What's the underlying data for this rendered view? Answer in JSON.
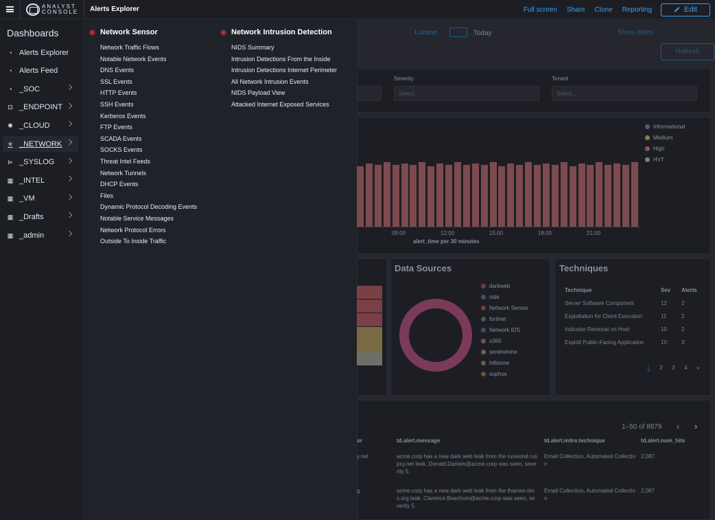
{
  "header": {
    "logo_line1": "ANALYST",
    "logo_line2": "CONSOLE",
    "title": "Alerts Explorer",
    "actions": [
      "Full screen",
      "Share",
      "Clone",
      "Reporting"
    ],
    "edit_label": "Edit"
  },
  "sidebar": {
    "title": "Dashboards",
    "items": [
      {
        "label": "Alerts Explorer",
        "icon": "gauge-icon",
        "has_children": false
      },
      {
        "label": "Alerts Feed",
        "icon": "gauge-icon",
        "has_children": false
      },
      {
        "label": "_SOC",
        "icon": "gauge-icon",
        "has_children": true
      },
      {
        "label": "_ENDPOINT",
        "icon": "chip-icon",
        "has_children": true
      },
      {
        "label": "_CLOUD",
        "icon": "sun-icon",
        "has_children": true
      },
      {
        "label": "_NETWORK",
        "icon": "network-icon",
        "has_children": true,
        "active": true
      },
      {
        "label": "_SYSLOG",
        "icon": "logs-icon",
        "has_children": true
      },
      {
        "label": "_INTEL",
        "icon": "grid-icon",
        "has_children": true
      },
      {
        "label": "_VM",
        "icon": "grid-icon",
        "has_children": true
      },
      {
        "label": "_Drafts",
        "icon": "grid-icon",
        "has_children": true
      },
      {
        "label": "_admin",
        "icon": "grid-icon",
        "has_children": true
      }
    ]
  },
  "dropdown": {
    "network_sensor": {
      "title": "Network Sensor",
      "links": [
        "Network Traffic Flows",
        "Notable Network Events",
        "DNS Events",
        "SSL Events",
        "HTTP Events",
        "SSH Events",
        "Kerberos Events",
        "FTP Events",
        "SCADA Events",
        "SOCKS Events",
        "Threat Intel Feeds",
        "Network Tunnels",
        "DHCP Events",
        "Files",
        "Dynamic Protocol Decoding Events",
        "Notable Service Messages",
        "Network Protocol Errors",
        "Outside To Inside Traffic"
      ]
    },
    "nids": {
      "title": "Network Intrusion Detection",
      "links": [
        "NIDS Summary",
        "Intrusion Detections From the Inside",
        "Intrusion Detections Internet Perimeter",
        "All Network Intrusion Events",
        "NIDS Payload View",
        "Attacked Internet Exposed Services"
      ]
    }
  },
  "background": {
    "query_language": "Lucene",
    "date_range": "Today",
    "show_dates": "Show dates",
    "refresh": "Refresh",
    "filters": [
      {
        "label": "Severity",
        "placeholder": "Select..."
      },
      {
        "label": "Tenant",
        "placeholder": "Select..."
      }
    ],
    "histogram": {
      "x_axis_title": "alert_time per 30 minutes",
      "ticks": [
        "09:00",
        "12:00",
        "15:00",
        "18:00",
        "21:00"
      ],
      "legend": [
        {
          "name": "Informational",
          "color": "#6092c0"
        },
        {
          "name": "Medium",
          "color": "#d6bf57"
        },
        {
          "name": "High",
          "color": "#e7664c"
        },
        {
          "name": "HVT",
          "color": "#b9bcc4"
        }
      ]
    },
    "data_sources": {
      "title": "Data Sources",
      "legend": [
        {
          "name": "darkweb",
          "color": "#d36086"
        },
        {
          "name": "nids",
          "color": "#6092c0"
        },
        {
          "name": "Network Sensor",
          "color": "#e7664c"
        },
        {
          "name": "fortinet",
          "color": "#54b399"
        },
        {
          "name": "Network IDS",
          "color": "#9170b8"
        },
        {
          "name": "o365",
          "color": "#ca8eae"
        },
        {
          "name": "sentinelone",
          "color": "#d6bf57"
        },
        {
          "name": "hillstone",
          "color": "#b9a888"
        },
        {
          "name": "sophos",
          "color": "#da8b45"
        }
      ]
    },
    "techniques": {
      "title": "Techniques",
      "columns": [
        "Technique",
        "Sev",
        "Alerts"
      ],
      "rows": [
        [
          "Server Software Component",
          "12",
          "2"
        ],
        [
          "Exploitation for Client Execution",
          "11",
          "2"
        ],
        [
          "Indicator Removal on Host",
          "10",
          "2"
        ],
        [
          "Exploit Public-Facing Application",
          "10",
          "3"
        ]
      ],
      "pages": [
        "1",
        "2",
        "3",
        "4",
        "»"
      ]
    },
    "table": {
      "pagination": "1–50 of 8879",
      "columns": [
        "or",
        "td.alert.message",
        "td.alert.mitre.technique",
        "td.alert.num_hits"
      ],
      "rows": [
        [
          "y.net",
          "acme.corp has a new dark web leak from the ruswond.ruspsy.net leak, Donald.Daniels@acme.corp was seen, severity 5.",
          "Email Collection, Automated Collection",
          "2,087"
        ],
        [
          "g",
          "acme.corp has a new dark web leak from the thames-tims.org leak, Clarence.Beachum@acme.corp was seen, severity 5.",
          "Email Collection, Automated Collection",
          "2,087"
        ]
      ]
    }
  }
}
